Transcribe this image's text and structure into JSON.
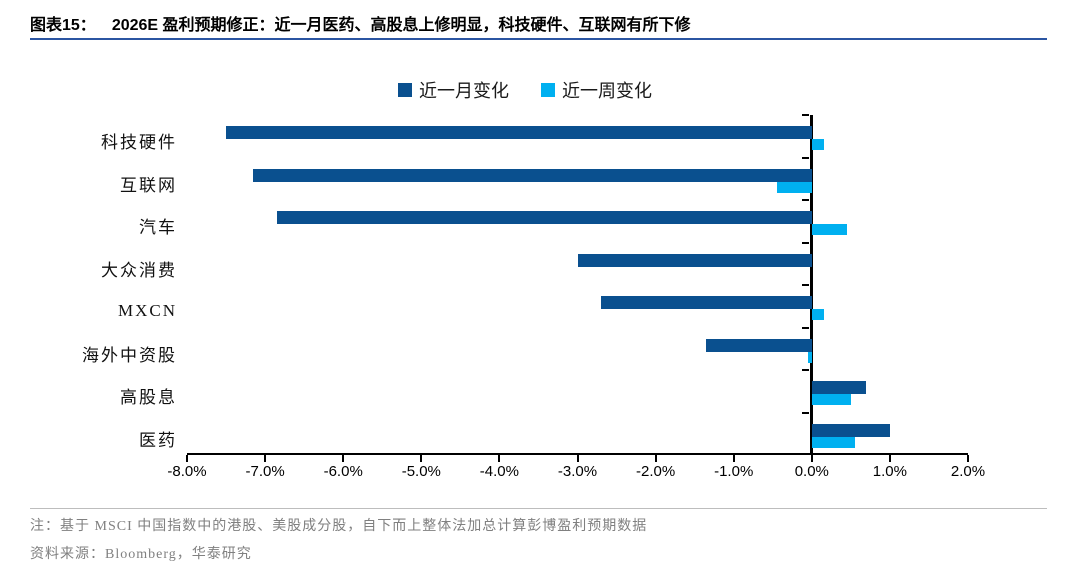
{
  "header": {
    "figure_label": "图表15：",
    "title": "2026E 盈利预期修正：近一月医药、高股息上修明显，科技硬件、互联网有所下修"
  },
  "chart_data": {
    "type": "bar",
    "orientation": "horizontal",
    "title": "",
    "categories": [
      "科技硬件",
      "互联网",
      "汽车",
      "大众消费",
      "MXCN",
      "海外中资股",
      "高股息",
      "医药"
    ],
    "series": [
      {
        "name": "近一月变化",
        "color": "#0A508F",
        "values": [
          -7.5,
          -7.15,
          -6.85,
          -3.0,
          -2.7,
          -1.35,
          0.7,
          1.0
        ]
      },
      {
        "name": "近一周变化",
        "color": "#00B0F0",
        "values": [
          0.15,
          -0.45,
          0.45,
          0.0,
          0.15,
          -0.05,
          0.5,
          0.55
        ]
      }
    ],
    "value_unit": "%",
    "xlim": [
      -8,
      2
    ],
    "x_ticks": [
      "-8.0%",
      "-7.0%",
      "-6.0%",
      "-5.0%",
      "-4.0%",
      "-3.0%",
      "-2.0%",
      "-1.0%",
      "0.0%",
      "1.0%",
      "2.0%"
    ],
    "legend_position": "top-center",
    "grid": false
  },
  "footer": {
    "note": "注：基于 MSCI 中国指数中的港股、美股成分股，自下而上整体法加总计算彭博盈利预期数据",
    "source": "资料来源：Bloomberg，华泰研究"
  }
}
